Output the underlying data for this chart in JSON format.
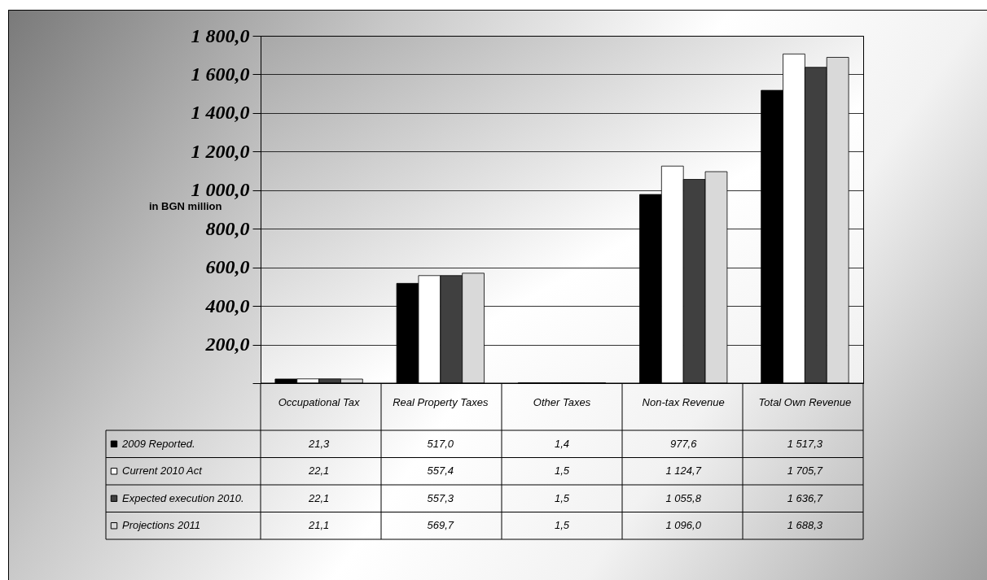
{
  "chart_data": {
    "type": "bar",
    "categories": [
      "Occupational Tax",
      "Real Property Taxes",
      "Other Taxes",
      "Non-tax Revenue",
      "Total Own Revenue"
    ],
    "series": [
      {
        "name": "2009 Reported.",
        "color": "#000000",
        "values": [
          21.3,
          517.0,
          1.4,
          977.6,
          1517.3
        ],
        "value_labels": [
          "21,3",
          "517,0",
          "1,4",
          "977,6",
          "1 517,3"
        ]
      },
      {
        "name": "Current 2010 Act",
        "color": "#ffffff",
        "values": [
          22.1,
          557.4,
          1.5,
          1124.7,
          1705.7
        ],
        "value_labels": [
          "22,1",
          "557,4",
          "1,5",
          "1 124,7",
          "1 705,7"
        ]
      },
      {
        "name": "Expected execution 2010.",
        "color": "#404040",
        "values": [
          22.1,
          557.3,
          1.5,
          1055.8,
          1636.7
        ],
        "value_labels": [
          "22,1",
          "557,3",
          "1,5",
          "1 055,8",
          "1 636,7"
        ]
      },
      {
        "name": "Projections 2011",
        "color": "#d9d9d9",
        "values": [
          21.1,
          569.7,
          1.5,
          1096.0,
          1688.3
        ],
        "value_labels": [
          "21,1",
          "569,7",
          "1,5",
          "1 096,0",
          "1 688,3"
        ]
      }
    ],
    "ylabel": "in BGN million",
    "ylim": [
      0,
      1800
    ],
    "yticks": [
      {
        "value": 0,
        "label": null
      },
      {
        "value": 200,
        "label": "200,0"
      },
      {
        "value": 400,
        "label": "400,0"
      },
      {
        "value": 600,
        "label": "600,0"
      },
      {
        "value": 800,
        "label": "800,0"
      },
      {
        "value": 1000,
        "label": "1 000,0"
      },
      {
        "value": 1200,
        "label": "1 200,0"
      },
      {
        "value": 1400,
        "label": "1 400,0"
      },
      {
        "value": 1600,
        "label": "1 600,0"
      },
      {
        "value": 1800,
        "label": "1 800,0"
      }
    ],
    "grid": "y",
    "legend": "bottom"
  }
}
